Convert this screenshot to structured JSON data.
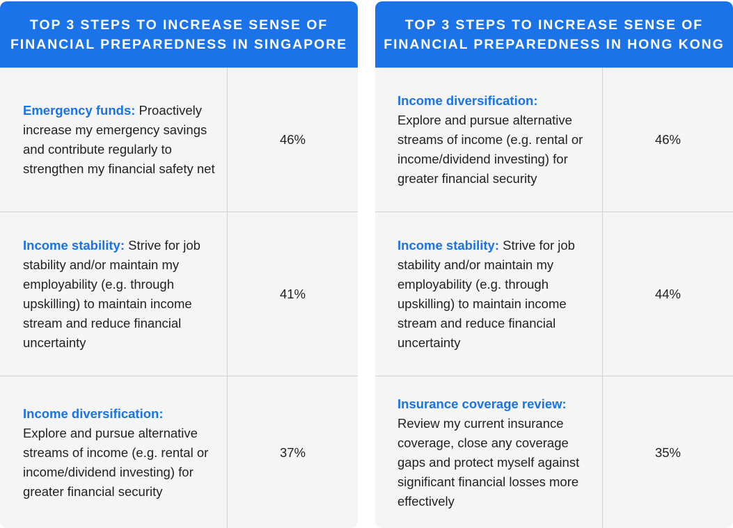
{
  "colors": {
    "accent": "#1a73e8",
    "panel_background": "#f5f5f5",
    "divider": "#d2d2d2",
    "text": "#222222"
  },
  "singapore": {
    "title_line1": "TOP 3 STEPS TO INCREASE SENSE OF",
    "title_line2": "FINANCIAL PREPAREDNESS IN SINGAPORE",
    "rows": [
      {
        "lead": "Emergency funds:",
        "text": " Proactively increase my emergency savings and contribute regularly to strengthen my financial safety net",
        "percent": "46%"
      },
      {
        "lead": "Income stability:",
        "text": " Strive for job stability and/or maintain my employability (e.g. through upskilling) to maintain income stream and reduce financial uncertainty",
        "percent": "41%"
      },
      {
        "lead": "Income diversification:",
        "text": "Explore and pursue alternative streams of income (e.g. rental or income/dividend investing) for greater financial security",
        "percent": "37%"
      }
    ]
  },
  "hong_kong": {
    "title_line1": "TOP 3 STEPS TO INCREASE SENSE OF",
    "title_line2": "FINANCIAL PREPAREDNESS IN HONG KONG",
    "rows": [
      {
        "lead": "Income diversification:",
        "text": "Explore and pursue alternative streams of income (e.g. rental or income/dividend investing) for greater financial security",
        "percent": "46%"
      },
      {
        "lead": "Income stability:",
        "text": " Strive for job stability and/or maintain my employability (e.g. through upskilling) to maintain income stream and reduce financial uncertainty",
        "percent": "44%"
      },
      {
        "lead": "Insurance coverage review:",
        "text": "Review my current insurance coverage, close any coverage gaps and protect myself against significant financial losses more effectively",
        "percent": "35%"
      }
    ]
  }
}
